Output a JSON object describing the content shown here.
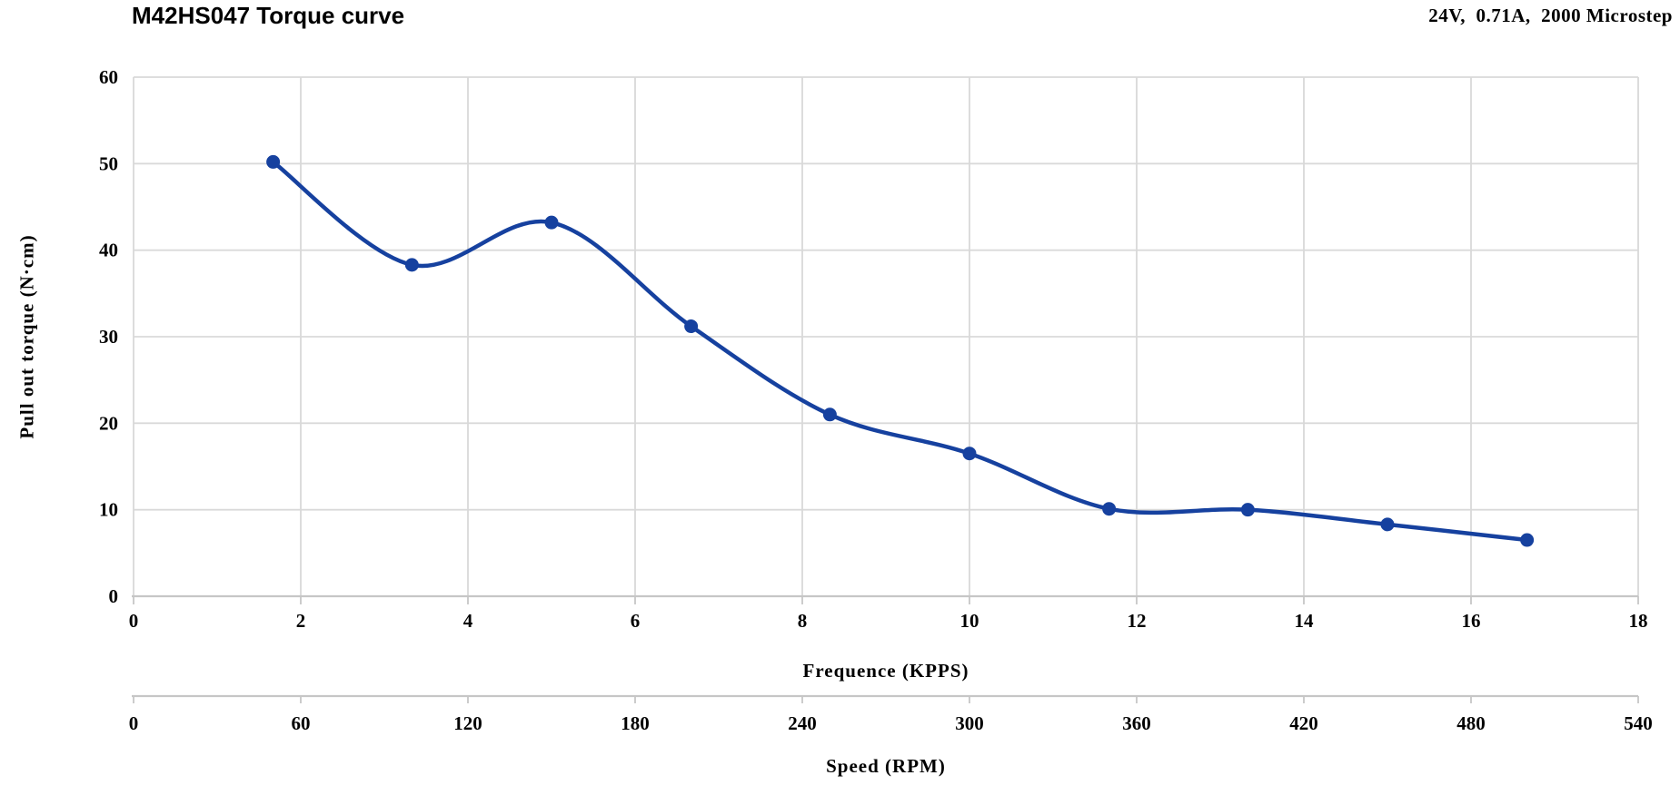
{
  "header": {
    "title": "M42HS047 Torque curve",
    "conditions": "24V,  0.71A,  2000 Microstep"
  },
  "chart_data": {
    "type": "line",
    "title": "M42HS047 Torque curve",
    "annotation": "24V, 0.71A, 2000 Microstep",
    "xlabel": "Frequence (KPPS)",
    "x2label": "Speed (RPM)",
    "ylabel": "Pull out torque (N·cm)",
    "xlim": [
      0,
      18
    ],
    "x2lim": [
      0,
      540
    ],
    "ylim": [
      0,
      60
    ],
    "x_ticks": [
      0,
      2,
      4,
      6,
      8,
      10,
      12,
      14,
      16,
      18
    ],
    "x2_ticks": [
      0,
      60,
      120,
      180,
      240,
      300,
      360,
      420,
      480,
      540
    ],
    "y_ticks": [
      0,
      10,
      20,
      30,
      40,
      50,
      60
    ],
    "grid": true,
    "legend": "none",
    "line_style": "smooth",
    "marker": "circle",
    "line_color": "#16419f",
    "grid_color": "#d9d9d9",
    "axis_color": "#c6c6c6",
    "series": [
      {
        "name": "Pull out torque",
        "x_kpps": [
          1.67,
          3.33,
          5.0,
          6.67,
          8.33,
          10.0,
          11.67,
          13.33,
          15.0,
          16.67
        ],
        "x_rpm": [
          50,
          100,
          150,
          200,
          250,
          300,
          350,
          400,
          450,
          500
        ],
        "values": [
          50.2,
          38.3,
          43.2,
          31.2,
          21.0,
          16.5,
          10.1,
          10.0,
          8.3,
          6.5
        ]
      }
    ]
  }
}
